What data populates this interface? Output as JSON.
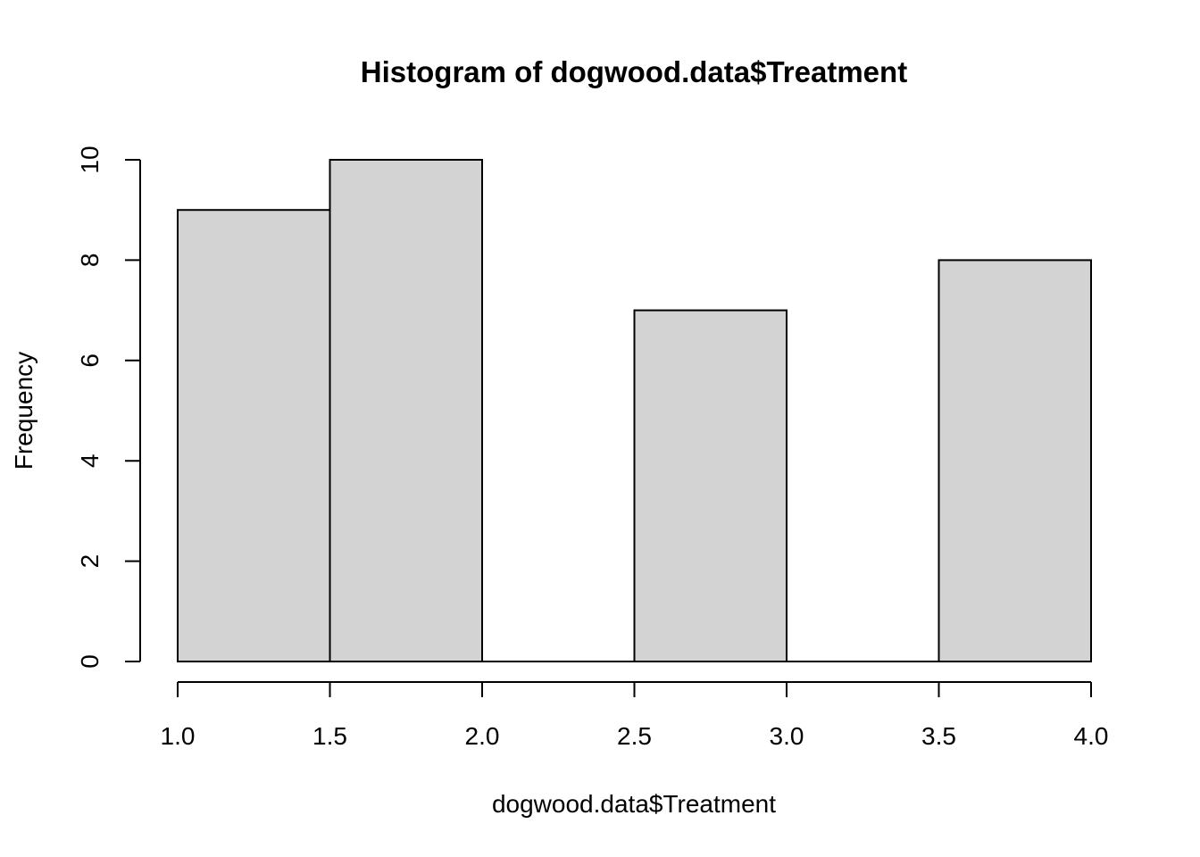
{
  "chart_data": {
    "type": "bar",
    "title": "Histogram of dogwood.data$Treatment",
    "xlabel": "dogwood.data$Treatment",
    "ylabel": "Frequency",
    "bins": [
      {
        "start": 1.0,
        "end": 1.5,
        "count": 9
      },
      {
        "start": 1.5,
        "end": 2.0,
        "count": 10
      },
      {
        "start": 2.0,
        "end": 2.5,
        "count": 0
      },
      {
        "start": 2.5,
        "end": 3.0,
        "count": 7
      },
      {
        "start": 3.0,
        "end": 3.5,
        "count": 0
      },
      {
        "start": 3.5,
        "end": 4.0,
        "count": 8
      }
    ],
    "xlim": [
      1.0,
      4.0
    ],
    "ylim": [
      0,
      10
    ],
    "x_ticks": [
      "1.0",
      "1.5",
      "2.0",
      "2.5",
      "3.0",
      "3.5",
      "4.0"
    ],
    "y_ticks": [
      "0",
      "2",
      "4",
      "6",
      "8",
      "10"
    ],
    "bar_fill": "#d3d3d3",
    "bar_stroke": "#000000",
    "grid": false
  }
}
